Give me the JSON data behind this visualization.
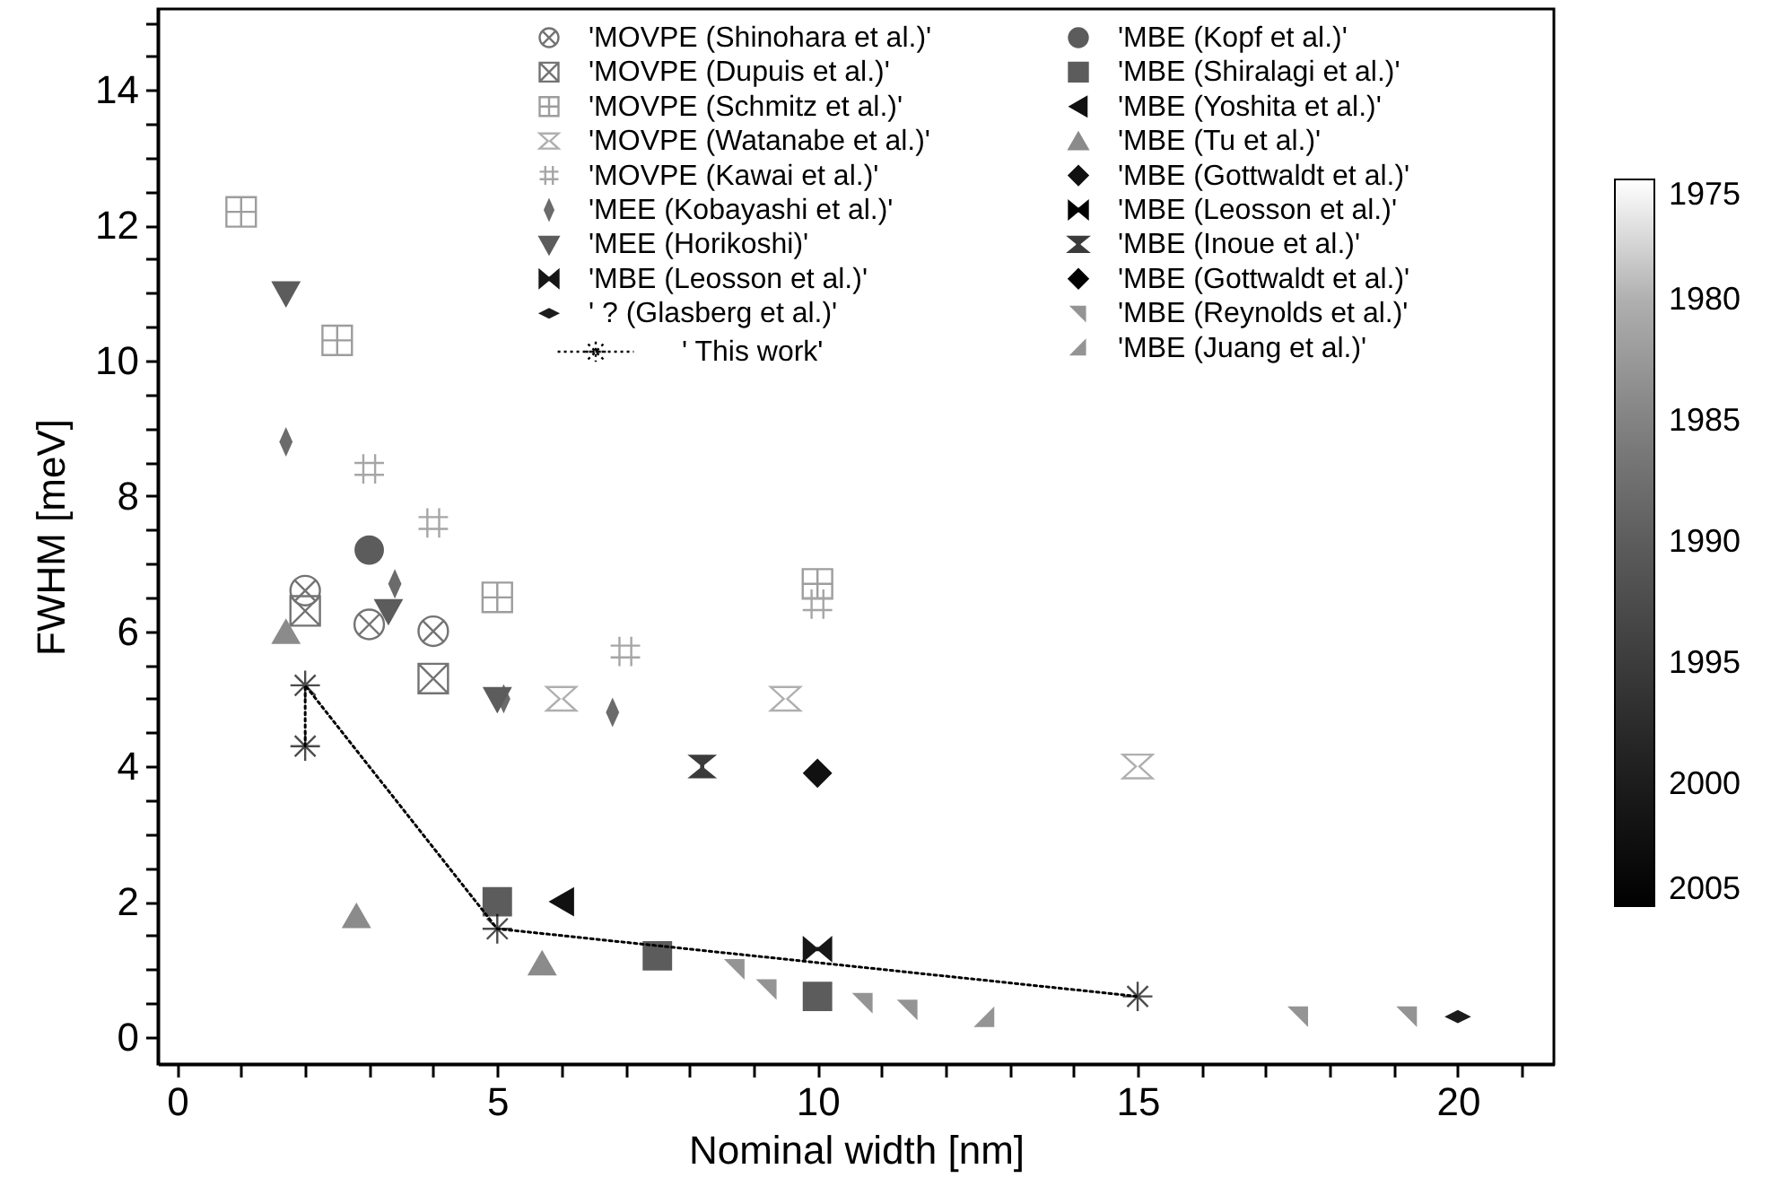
{
  "chart_data": {
    "type": "scatter",
    "xlabel": "Nominal width [nm]",
    "ylabel": "FWHM [meV]",
    "xlim": [
      -0.3,
      21.5
    ],
    "ylim": [
      -0.4,
      15.2
    ],
    "xticks": [
      0,
      {
        "value": 1,
        "label": null
      },
      {
        "value": 2,
        "label": null
      },
      {
        "value": 3,
        "label": null
      },
      {
        "value": 4,
        "label": null
      },
      5,
      {
        "value": 6,
        "label": null
      },
      {
        "value": 7,
        "label": null
      },
      {
        "value": 8,
        "label": null
      },
      {
        "value": 9,
        "label": null
      },
      10,
      {
        "value": 11,
        "label": null
      },
      {
        "value": 12,
        "label": null
      },
      {
        "value": 13,
        "label": null
      },
      {
        "value": 14,
        "label": null
      },
      15,
      {
        "value": 16,
        "label": null
      },
      {
        "value": 17,
        "label": null
      },
      {
        "value": 18,
        "label": null
      },
      {
        "value": 19,
        "label": null
      },
      20,
      {
        "value": 21,
        "label": null
      }
    ],
    "yticks": [
      0,
      {
        "value": 0.5,
        "label": null
      },
      {
        "value": 1,
        "label": null
      },
      {
        "value": 1.5,
        "label": null
      },
      2,
      {
        "value": 2.5,
        "label": null
      },
      {
        "value": 3,
        "label": null
      },
      {
        "value": 3.5,
        "label": null
      },
      4,
      {
        "value": 4.5,
        "label": null
      },
      {
        "value": 5,
        "label": null
      },
      {
        "value": 5.5,
        "label": null
      },
      6,
      {
        "value": 6.5,
        "label": null
      },
      {
        "value": 7,
        "label": null
      },
      {
        "value": 7.5,
        "label": null
      },
      8,
      {
        "value": 8.5,
        "label": null
      },
      {
        "value": 9,
        "label": null
      },
      {
        "value": 9.5,
        "label": null
      },
      10,
      {
        "value": 10.5,
        "label": null
      },
      {
        "value": 11,
        "label": null
      },
      {
        "value": 11.5,
        "label": null
      },
      12,
      {
        "value": 12.5,
        "label": null
      },
      {
        "value": 13,
        "label": null
      },
      {
        "value": 13.5,
        "label": null
      },
      14,
      {
        "value": 14.5,
        "label": null
      },
      {
        "value": 15,
        "label": null
      }
    ],
    "clim": [
      1975,
      2005
    ],
    "cticks": [
      1975,
      1980,
      1985,
      1990,
      1995,
      2000,
      2005
    ],
    "legend": "top",
    "series": [
      {
        "name": "'MOVPE (Shinohara et al.)'",
        "x": [
          2,
          3,
          4
        ],
        "values": [
          6.6,
          6.1,
          6.0
        ],
        "cvalues": [
          1987,
          1987,
          1987
        ]
      },
      {
        "name": "'MOVPE (Dupuis et al.)'",
        "x": [
          2,
          4
        ],
        "values": [
          6.3,
          5.3
        ],
        "cvalues": [
          1987,
          1987
        ]
      },
      {
        "name": "'MOVPE (Schmitz et al.)'",
        "x": [
          1,
          2.5,
          5,
          10
        ],
        "values": [
          12.2,
          10.3,
          6.5,
          6.7
        ],
        "cvalues": [
          1982,
          1982,
          1982,
          1982
        ]
      },
      {
        "name": "'MOVPE (Watanabe et al.)'",
        "x": [
          6,
          9.5,
          15
        ],
        "values": [
          5.0,
          5.0,
          4.0
        ],
        "cvalues": [
          1980,
          1980,
          1980
        ]
      },
      {
        "name": "'MOVPE (Kawai et al.)'",
        "x": [
          3,
          4,
          7,
          10
        ],
        "values": [
          8.4,
          7.6,
          5.7,
          6.4
        ],
        "cvalues": [
          1981,
          1981,
          1981,
          1981
        ]
      },
      {
        "name": "'MEE (Kobayashi et al.)'",
        "x": [
          1.7,
          3.4,
          5.1,
          6.8
        ],
        "values": [
          8.8,
          6.7,
          5.0,
          4.8
        ],
        "cvalues": [
          1988,
          1988,
          1988,
          1988
        ]
      },
      {
        "name": "'MEE (Horikoshi)'",
        "x": [
          1.7,
          3.3,
          5
        ],
        "values": [
          11.0,
          6.3,
          5.0
        ],
        "cvalues": [
          1990,
          1990,
          1990
        ]
      },
      {
        "name": "'MBE (Leosson et al.)'",
        "x": [
          10
        ],
        "values": [
          1.3
        ],
        "cvalues": [
          2001
        ]
      },
      {
        "name": "' ?  (Glasberg et al.)'",
        "x": [
          20
        ],
        "values": [
          0.3
        ],
        "cvalues": [
          2000
        ]
      },
      {
        "name": "'MBE (Kopf et al.)'",
        "x": [
          3
        ],
        "values": [
          7.2
        ],
        "cvalues": [
          1990
        ]
      },
      {
        "name": "'MBE (Shiralagi et al.)'",
        "x": [
          5,
          7.5,
          10
        ],
        "values": [
          2.0,
          1.2,
          0.6
        ],
        "cvalues": [
          1990,
          1990,
          1990
        ]
      },
      {
        "name": "'MBE (Yoshita et al.)'",
        "x": [
          6
        ],
        "values": [
          2.0
        ],
        "cvalues": [
          2002
        ]
      },
      {
        "name": "'MBE (Tu et al.)'",
        "x": [
          1.7,
          2.8,
          5.7
        ],
        "values": [
          6.0,
          1.8,
          1.1
        ],
        "cvalues": [
          1984,
          1984,
          1984
        ]
      },
      {
        "name": "'MBE (Gottwaldt et al.)'",
        "x": [
          10
        ],
        "values": [
          3.9
        ],
        "cvalues": [
          2002
        ]
      },
      {
        "name": "'MBE (Leosson et al.)'"
      },
      {
        "name": "'MBE (Inoue et al.)'",
        "x": [
          8.2
        ],
        "values": [
          4.0
        ],
        "cvalues": [
          1995
        ]
      },
      {
        "name": "'MBE (Gottwaldt et al.)'"
      },
      {
        "name": "'MBE (Reynolds et al.)'",
        "x": [
          8.7,
          9.2,
          10.7,
          11.4,
          17.5,
          19.2
        ],
        "values": [
          1.0,
          0.7,
          0.5,
          0.4,
          0.3,
          0.3
        ],
        "cvalues": [
          1983,
          1983,
          1983,
          1983,
          1983,
          1983
        ]
      },
      {
        "name": "'MBE (Juang et al.)'",
        "x": [
          12.6
        ],
        "values": [
          0.3
        ],
        "cvalues": [
          1983
        ]
      },
      {
        "name": "' This work'",
        "type": "line",
        "marker": "cross",
        "line_style": "dotted",
        "color": "#000000",
        "x": [
          2,
          2,
          5,
          15
        ],
        "values": [
          4.3,
          5.2,
          1.6,
          0.6
        ]
      }
    ]
  }
}
